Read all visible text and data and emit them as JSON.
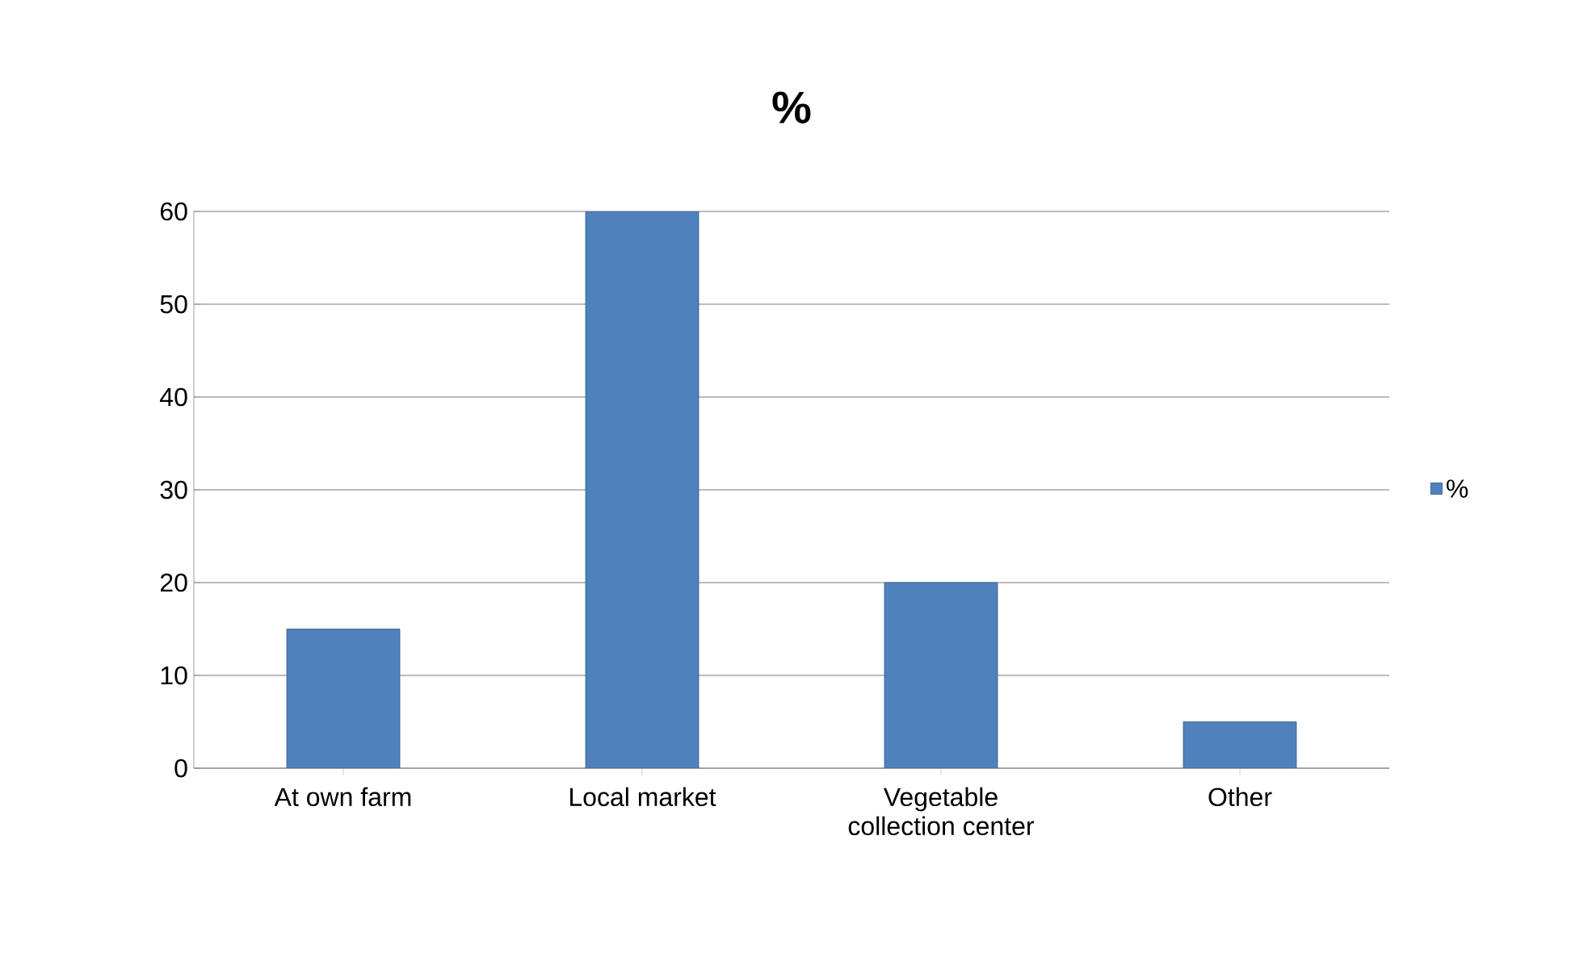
{
  "chart_data": {
    "type": "bar",
    "title": "%",
    "categories": [
      "At own farm",
      "Local market",
      "Vegetable collection center",
      "Other"
    ],
    "series": [
      {
        "name": "%",
        "color": "#4f81bd",
        "values": [
          15,
          60,
          20,
          5
        ]
      }
    ],
    "ylim": [
      0,
      60
    ],
    "yticks": [
      0,
      10,
      20,
      30,
      40,
      50,
      60
    ],
    "grid": "y",
    "legend": "right"
  }
}
